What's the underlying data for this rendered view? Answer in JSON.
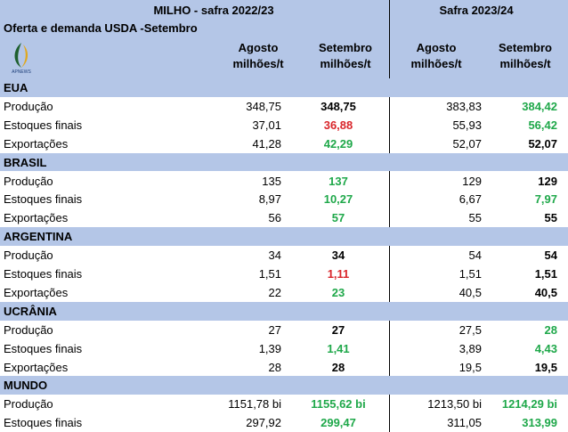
{
  "header": {
    "title_left": "MILHO - safra 2022/23",
    "title_right": "Safra 2023/24",
    "subtitle": "Oferta e demanda USDA -Setembro",
    "logo_text": "APNEWS",
    "columns": [
      [
        "Agosto",
        "milhões/t"
      ],
      [
        "Setembro",
        "milhões/t"
      ],
      [
        "Agosto",
        "milhões/t"
      ],
      [
        "Setembro",
        "milhões/t"
      ]
    ]
  },
  "table": {
    "sections": [
      {
        "name": "EUA",
        "rows": [
          {
            "label": "Produção",
            "values": [
              "348,75",
              "348,75",
              "383,83",
              "384,42"
            ],
            "colors": [
              "#000000",
              "#1fa84a"
            ]
          },
          {
            "label": "Estoques finais",
            "values": [
              "37,01",
              "36,88",
              "55,93",
              "56,42"
            ],
            "colors": [
              "#d9262b",
              "#1fa84a"
            ]
          },
          {
            "label": "Exportações",
            "values": [
              "41,28",
              "42,29",
              "52,07",
              "52,07"
            ],
            "colors": [
              "#1fa84a",
              "#000000"
            ]
          }
        ]
      },
      {
        "name": "BRASIL",
        "rows": [
          {
            "label": "Produção",
            "values": [
              "135",
              "137",
              "129",
              "129"
            ],
            "colors": [
              "#1fa84a",
              "#000000"
            ]
          },
          {
            "label": "Estoques finais",
            "values": [
              "8,97",
              "10,27",
              "6,67",
              "7,97"
            ],
            "colors": [
              "#1fa84a",
              "#1fa84a"
            ]
          },
          {
            "label": "Exportações",
            "values": [
              "56",
              "57",
              "55",
              "55"
            ],
            "colors": [
              "#1fa84a",
              "#000000"
            ]
          }
        ]
      },
      {
        "name": "ARGENTINA",
        "rows": [
          {
            "label": "Produção",
            "values": [
              "34",
              "34",
              "54",
              "54"
            ],
            "colors": [
              "#000000",
              "#000000"
            ]
          },
          {
            "label": "Estoques finais",
            "values": [
              "1,51",
              "1,11",
              "1,51",
              "1,51"
            ],
            "colors": [
              "#d9262b",
              "#000000"
            ]
          },
          {
            "label": "Exportações",
            "values": [
              "22",
              "23",
              "40,5",
              "40,5"
            ],
            "colors": [
              "#1fa84a",
              "#000000"
            ]
          }
        ]
      },
      {
        "name": "UCRÂNIA",
        "rows": [
          {
            "label": "Produção",
            "values": [
              "27",
              "27",
              "27,5",
              "28"
            ],
            "colors": [
              "#000000",
              "#1fa84a"
            ]
          },
          {
            "label": "Estoques finais",
            "values": [
              "1,39",
              "1,41",
              "3,89",
              "4,43"
            ],
            "colors": [
              "#1fa84a",
              "#1fa84a"
            ]
          },
          {
            "label": "Exportações",
            "values": [
              "28",
              "28",
              "19,5",
              "19,5"
            ],
            "colors": [
              "#000000",
              "#000000"
            ]
          }
        ]
      },
      {
        "name": "MUNDO",
        "rows": [
          {
            "label": "Produção",
            "values": [
              "1151,78 bi",
              "1155,62 bi",
              "1213,50 bi",
              "1214,29 bi"
            ],
            "colors": [
              "#1fa84a",
              "#1fa84a"
            ]
          },
          {
            "label": "Estoques finais",
            "values": [
              "297,92",
              "299,47",
              "311,05",
              "313,99"
            ],
            "colors": [
              "#1fa84a",
              "#1fa84a"
            ]
          }
        ]
      }
    ]
  }
}
